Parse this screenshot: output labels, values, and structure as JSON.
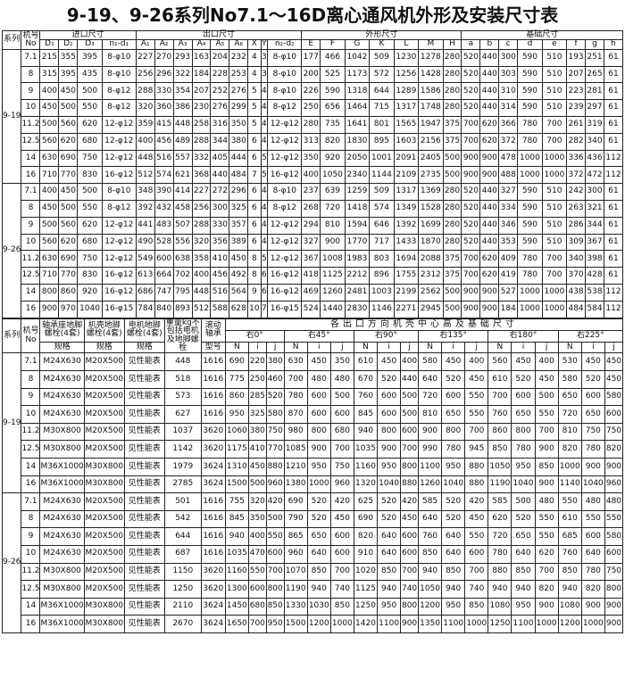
{
  "title": "9-19、9-26系列No7.1～16D离心通风机外形及安装尺寸表",
  "table1": {
    "header": {
      "series": "系列",
      "no": "机号No",
      "groups": [
        "进口尺寸",
        "出口尺寸",
        "外形尺寸",
        "基础尺寸"
      ],
      "subs": [
        "D₁",
        "D₂",
        "D₃",
        "n₁-d₁",
        "A₁",
        "A₂",
        "A₃",
        "A₄",
        "A₅",
        "A₆",
        "X",
        "Y",
        "n₂-d₂",
        "E",
        "F",
        "G",
        "K",
        "L",
        "M",
        "H",
        "a",
        "b",
        "c",
        "d",
        "e",
        "f",
        "g",
        "h"
      ]
    },
    "sections": [
      {
        "series": "9-19",
        "rows": [
          [
            7.1,
            215,
            355,
            395,
            "8-φ10",
            227,
            270,
            293,
            163,
            204,
            232,
            4,
            3,
            "8-φ10",
            177,
            466,
            1042,
            509,
            1230,
            1278,
            280,
            520,
            440,
            300,
            590,
            510,
            193,
            251,
            61
          ],
          [
            8,
            315,
            395,
            435,
            "8-φ10",
            256,
            296,
            322,
            184,
            228,
            253,
            4,
            3,
            "8-φ10",
            200,
            525,
            1173,
            572,
            1256,
            1428,
            280,
            520,
            440,
            303,
            590,
            510,
            207,
            265,
            61
          ],
          [
            9,
            400,
            450,
            500,
            "8-φ12",
            288,
            330,
            354,
            207,
            252,
            276,
            5,
            4,
            "8-φ10",
            226,
            590,
            1318,
            644,
            1289,
            1586,
            280,
            520,
            440,
            310,
            590,
            510,
            223,
            281,
            61
          ],
          [
            10,
            450,
            500,
            550,
            "8-φ12",
            320,
            360,
            386,
            230,
            276,
            299,
            5,
            4,
            "8-φ12",
            250,
            656,
            1464,
            715,
            1317,
            1748,
            280,
            520,
            440,
            314,
            590,
            510,
            239,
            297,
            61
          ],
          [
            11.2,
            500,
            560,
            620,
            "12-φ12",
            359,
            415,
            448,
            258,
            316,
            350,
            5,
            4,
            "12-φ12",
            280,
            735,
            1641,
            801,
            1565,
            1947,
            375,
            700,
            620,
            366,
            780,
            700,
            261,
            319,
            61
          ],
          [
            12.5,
            560,
            620,
            680,
            "12-φ12",
            400,
            456,
            489,
            288,
            344,
            380,
            6,
            4,
            "12-φ12",
            313,
            820,
            1830,
            895,
            1603,
            2156,
            375,
            700,
            620,
            372,
            780,
            700,
            282,
            340,
            61
          ],
          [
            14,
            630,
            690,
            750,
            "12-φ12",
            448,
            516,
            557,
            332,
            405,
            444,
            6,
            5,
            "12-φ12",
            350,
            920,
            2050,
            1001,
            2091,
            2405,
            500,
            900,
            900,
            478,
            1000,
            1000,
            336,
            436,
            112
          ],
          [
            16,
            710,
            770,
            830,
            "16-φ12",
            512,
            574,
            621,
            368,
            440,
            484,
            7,
            5,
            "16-φ12",
            400,
            1050,
            2340,
            1144,
            2109,
            2735,
            500,
            900,
            900,
            488,
            1000,
            1000,
            372,
            472,
            112
          ]
        ]
      },
      {
        "series": "9-26",
        "rows": [
          [
            7.1,
            400,
            450,
            500,
            "8-φ10",
            348,
            390,
            414,
            227,
            272,
            296,
            6,
            4,
            "8-φ10",
            237,
            639,
            1259,
            509,
            1317,
            1369,
            280,
            520,
            440,
            327,
            590,
            510,
            242,
            300,
            61
          ],
          [
            8,
            450,
            500,
            550,
            "8-φ12",
            392,
            432,
            458,
            256,
            300,
            325,
            6,
            4,
            "8-φ12",
            268,
            720,
            1418,
            574,
            1349,
            1528,
            280,
            520,
            440,
            334,
            590,
            510,
            263,
            321,
            61
          ],
          [
            9,
            500,
            560,
            620,
            "12-φ12",
            441,
            483,
            507,
            288,
            330,
            357,
            6,
            4,
            "12-φ12",
            294,
            810,
            1594,
            646,
            1392,
            1699,
            280,
            520,
            440,
            346,
            590,
            510,
            286,
            344,
            61
          ],
          [
            10,
            560,
            620,
            680,
            "12-φ12",
            490,
            528,
            556,
            320,
            356,
            389,
            6,
            4,
            "12-φ12",
            327,
            900,
            1770,
            717,
            1433,
            1870,
            280,
            520,
            440,
            353,
            590,
            510,
            309,
            367,
            61
          ],
          [
            11.2,
            630,
            690,
            750,
            "12-φ12",
            549,
            600,
            638,
            358,
            410,
            450,
            8,
            5,
            "12-φ12",
            367,
            1008,
            1983,
            803,
            1694,
            2088,
            375,
            700,
            620,
            409,
            780,
            700,
            340,
            398,
            61
          ],
          [
            12.5,
            710,
            770,
            830,
            "16-φ12",
            613,
            664,
            702,
            400,
            456,
            492,
            8,
            6,
            "16-φ12",
            418,
            1125,
            2212,
            896,
            1755,
            2312,
            375,
            700,
            620,
            419,
            780,
            700,
            370,
            428,
            61
          ],
          [
            14,
            800,
            860,
            920,
            "16-φ12",
            686,
            747,
            795,
            448,
            516,
            564,
            9,
            6,
            "16-φ12",
            469,
            1260,
            2481,
            1003,
            2199,
            2562,
            500,
            900,
            900,
            527,
            1000,
            1000,
            438,
            538,
            112
          ],
          [
            16,
            900,
            970,
            1040,
            "16-φ15",
            784,
            840,
            893,
            512,
            588,
            628,
            10,
            7,
            "16-φ15",
            524,
            1440,
            2830,
            1146,
            2271,
            2945,
            500,
            900,
            900,
            184,
            1000,
            1000,
            484,
            584,
            112
          ]
        ]
      }
    ]
  },
  "table2": {
    "header": {
      "series": "系列",
      "no": "机号No",
      "bolts": [
        "轴承座地脚螺栓(4套)",
        "机壳地脚螺栓(4套)",
        "电机地脚螺栓(4套)"
      ],
      "weight": "重量kg不包括电机及地脚螺栓",
      "bearing": "滚动轴承",
      "span_title": "各出口方向机壳中心高及基础尺寸",
      "directions": [
        "右0°",
        "右45°",
        "右90°",
        "右135°",
        "右180°",
        "右225°"
      ],
      "specs": [
        "规格",
        "规格",
        "规格"
      ],
      "bearing_sub": "型号",
      "nij": [
        "N",
        "i",
        "j"
      ]
    },
    "sections": [
      {
        "series": "9-19",
        "rows": [
          [
            7.1,
            "M24X630",
            "M20X500",
            "见性能表",
            448,
            1616,
            690,
            220,
            380,
            630,
            450,
            350,
            610,
            450,
            400,
            580,
            450,
            400,
            560,
            450,
            400,
            530,
            450,
            450
          ],
          [
            8,
            "M24X630",
            "M20X500",
            "见性能表",
            518,
            1616,
            775,
            250,
            460,
            700,
            480,
            480,
            670,
            520,
            440,
            640,
            520,
            450,
            610,
            520,
            450,
            580,
            520,
            450
          ],
          [
            9,
            "M24X630",
            "M20X500",
            "见性能表",
            573,
            1616,
            860,
            285,
            520,
            780,
            600,
            500,
            760,
            600,
            500,
            720,
            600,
            550,
            700,
            600,
            500,
            650,
            600,
            580
          ],
          [
            10,
            "M24X630",
            "M20X500",
            "见性能表",
            627,
            1616,
            950,
            325,
            580,
            870,
            600,
            600,
            845,
            600,
            500,
            810,
            650,
            550,
            760,
            650,
            550,
            720,
            650,
            600
          ],
          [
            11.2,
            "M30X800",
            "M20X500",
            "见性能表",
            1037,
            3620,
            1060,
            380,
            750,
            980,
            800,
            680,
            940,
            800,
            600,
            900,
            800,
            700,
            860,
            800,
            700,
            810,
            750,
            750
          ],
          [
            12.5,
            "M30X800",
            "M20X500",
            "见性能表",
            1142,
            3620,
            1175,
            410,
            770,
            1085,
            900,
            700,
            1035,
            900,
            700,
            990,
            780,
            945,
            850,
            780,
            900,
            820,
            780,
            820
          ],
          [
            14,
            "M36X1000",
            "M30X800",
            "见性能表",
            1979,
            3624,
            1310,
            450,
            880,
            1210,
            950,
            750,
            1160,
            950,
            800,
            1100,
            950,
            880,
            1050,
            950,
            850,
            1000,
            900,
            900
          ],
          [
            16,
            "M36X1000",
            "M30X800",
            "见性能表",
            2785,
            3624,
            1500,
            500,
            960,
            1380,
            1000,
            960,
            1320,
            1040,
            880,
            1260,
            1040,
            880,
            1190,
            1040,
            900,
            1140,
            1040,
            960
          ]
        ]
      },
      {
        "series": "9-26",
        "rows": [
          [
            7.1,
            "M24X630",
            "M20X500",
            "见性能表",
            501,
            1616,
            755,
            320,
            420,
            690,
            520,
            420,
            625,
            520,
            420,
            585,
            520,
            420,
            585,
            500,
            480,
            550,
            480,
            480
          ],
          [
            8,
            "M24X630",
            "M20X500",
            "见性能表",
            542,
            1616,
            845,
            350,
            500,
            790,
            520,
            450,
            690,
            520,
            450,
            640,
            520,
            450,
            620,
            520,
            550,
            610,
            550,
            550
          ],
          [
            9,
            "M24X630",
            "M20X500",
            "见性能表",
            644,
            1616,
            940,
            400,
            550,
            865,
            650,
            600,
            820,
            640,
            600,
            760,
            640,
            550,
            720,
            650,
            550,
            685,
            600,
            580
          ],
          [
            10,
            "M24X630",
            "M20X500",
            "见性能表",
            687,
            1616,
            1035,
            470,
            600,
            960,
            640,
            600,
            910,
            640,
            600,
            850,
            640,
            600,
            780,
            640,
            620,
            760,
            640,
            600
          ],
          [
            11.2,
            "M30X800",
            "M20X500",
            "见性能表",
            1150,
            3620,
            1160,
            550,
            700,
            1070,
            850,
            700,
            1020,
            850,
            700,
            940,
            850,
            700,
            880,
            850,
            700,
            850,
            780,
            750
          ],
          [
            12.5,
            "M30X800",
            "M20X500",
            "见性能表",
            1250,
            3620,
            1300,
            600,
            800,
            1190,
            940,
            740,
            1125,
            940,
            740,
            1050,
            940,
            740,
            940,
            940,
            820,
            940,
            820,
            800
          ],
          [
            14,
            "M36X1000",
            "M30X800",
            "见性能表",
            2110,
            3624,
            1450,
            680,
            850,
            1330,
            1030,
            850,
            1250,
            950,
            800,
            1200,
            950,
            850,
            1080,
            950,
            900,
            1080,
            900,
            900
          ],
          [
            16,
            "M36X1000",
            "M30X800",
            "见性能表",
            2670,
            3624,
            1650,
            700,
            950,
            1500,
            1200,
            1000,
            1420,
            1100,
            900,
            1350,
            1100,
            1000,
            1250,
            1100,
            1000,
            1200,
            1000,
            900
          ]
        ]
      }
    ]
  }
}
